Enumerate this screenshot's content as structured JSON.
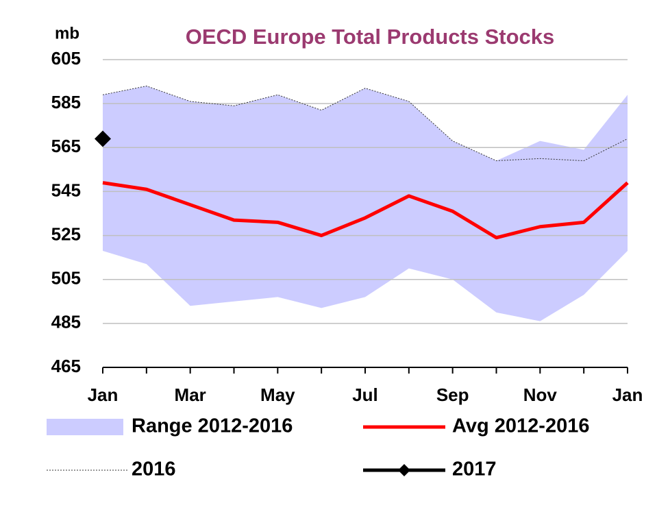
{
  "chart_data": {
    "type": "line",
    "title": "OECD Europe Total Products Stocks",
    "y_label": "mb",
    "categories": [
      "Jan",
      null,
      "Mar",
      null,
      "May",
      null,
      "Jul",
      null,
      "Sep",
      null,
      "Nov",
      null,
      "Jan"
    ],
    "ylim": [
      465,
      605
    ],
    "yticks": [
      465,
      485,
      505,
      525,
      545,
      565,
      585,
      605
    ],
    "grid": true,
    "range": {
      "name": "Range 2012-2016",
      "color": "#ccccff",
      "upper": [
        589,
        593,
        586,
        584,
        589,
        582,
        592,
        586,
        568,
        559,
        568,
        564,
        589
      ],
      "lower": [
        518,
        512,
        493,
        495,
        497,
        492,
        497,
        510,
        505,
        490,
        486,
        498,
        518
      ]
    },
    "series": [
      {
        "name": "Avg 2012-2016",
        "color": "#ff0000",
        "values": [
          549,
          546,
          539,
          532,
          531,
          525,
          533,
          543,
          536,
          524,
          529,
          531,
          549
        ]
      },
      {
        "name": "2016",
        "color": "#333333",
        "values": [
          589,
          593,
          586,
          584,
          589,
          582,
          592,
          586,
          568,
          559,
          560,
          559,
          569
        ]
      },
      {
        "name": "2017",
        "color": "#000000",
        "values": [
          569,
          null,
          null,
          null,
          null,
          null,
          null,
          null,
          null,
          null,
          null,
          null,
          null
        ]
      }
    ]
  }
}
